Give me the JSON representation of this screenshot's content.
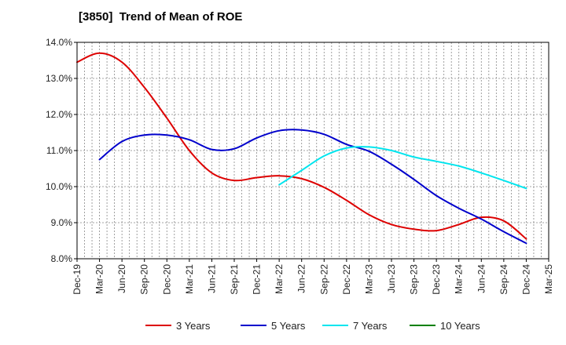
{
  "chart_data": {
    "type": "line",
    "title": "[3850]  Trend of Mean of ROE",
    "xlabel": "",
    "ylabel": "",
    "x_ticks": [
      "Dec-19",
      "Mar-20",
      "Jun-20",
      "Sep-20",
      "Dec-20",
      "Mar-21",
      "Jun-21",
      "Sep-21",
      "Dec-21",
      "Mar-22",
      "Jun-22",
      "Sep-22",
      "Dec-22",
      "Mar-23",
      "Jun-23",
      "Sep-23",
      "Dec-23",
      "Mar-24",
      "Jun-24",
      "Sep-24",
      "Dec-24",
      "Mar-25"
    ],
    "ylim": [
      8.0,
      14.0
    ],
    "y_ticks": [
      "8.0%",
      "9.0%",
      "10.0%",
      "11.0%",
      "12.0%",
      "13.0%",
      "14.0%"
    ],
    "grid": true,
    "legend_position": "bottom",
    "series": [
      {
        "name": "3 Years",
        "color": "#dd0000",
        "x": [
          "Dec-19",
          "Mar-20",
          "Jun-20",
          "Sep-20",
          "Dec-20",
          "Mar-21",
          "Jun-21",
          "Sep-21",
          "Dec-21",
          "Mar-22",
          "Jun-22",
          "Sep-22",
          "Dec-22",
          "Mar-23",
          "Jun-23",
          "Sep-23",
          "Dec-23",
          "Mar-24",
          "Jun-24",
          "Sep-24",
          "Dec-24"
        ],
        "values": [
          13.45,
          13.7,
          13.45,
          12.75,
          11.9,
          11.0,
          10.38,
          10.17,
          10.25,
          10.3,
          10.22,
          9.98,
          9.62,
          9.22,
          8.95,
          8.82,
          8.78,
          8.95,
          9.15,
          9.05,
          8.55
        ]
      },
      {
        "name": "5 Years",
        "color": "#0000cc",
        "x": [
          "Mar-20",
          "Jun-20",
          "Sep-20",
          "Dec-20",
          "Mar-21",
          "Jun-21",
          "Sep-21",
          "Dec-21",
          "Mar-22",
          "Jun-22",
          "Sep-22",
          "Dec-22",
          "Mar-23",
          "Jun-23",
          "Sep-23",
          "Dec-23",
          "Mar-24",
          "Jun-24",
          "Sep-24",
          "Dec-24"
        ],
        "values": [
          10.75,
          11.25,
          11.43,
          11.43,
          11.3,
          11.03,
          11.05,
          11.35,
          11.55,
          11.57,
          11.45,
          11.17,
          10.98,
          10.62,
          10.2,
          9.75,
          9.4,
          9.1,
          8.75,
          8.43
        ]
      },
      {
        "name": "7 Years",
        "color": "#00e5ee",
        "x": [
          "Mar-22",
          "Jun-22",
          "Sep-22",
          "Dec-22",
          "Mar-23",
          "Jun-23",
          "Sep-23",
          "Dec-23",
          "Mar-24",
          "Jun-24",
          "Sep-24",
          "Dec-24"
        ],
        "values": [
          10.05,
          10.45,
          10.85,
          11.07,
          11.1,
          11.0,
          10.82,
          10.7,
          10.57,
          10.38,
          10.17,
          9.95
        ]
      },
      {
        "name": "10 Years",
        "color": "#008000",
        "x": [],
        "values": []
      }
    ]
  }
}
